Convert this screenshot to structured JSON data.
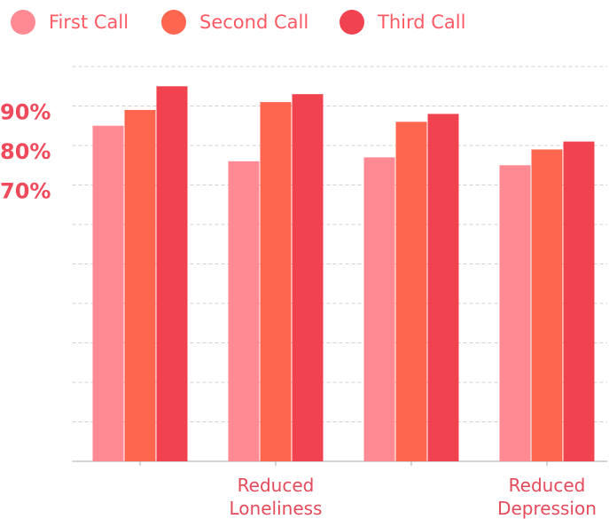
{
  "chart_data": {
    "type": "bar",
    "categories": [
      null,
      "Reduced Loneliness",
      null,
      "Reduced Depression"
    ],
    "series": [
      {
        "name": "First Call",
        "color": "#ff8a93",
        "values": [
          85,
          76,
          77,
          75
        ]
      },
      {
        "name": "Second Call",
        "color": "#ff6650",
        "values": [
          89,
          91,
          86,
          79
        ]
      },
      {
        "name": "Third Call",
        "color": "#f0434f",
        "values": [
          95,
          93,
          88,
          81
        ]
      }
    ],
    "ylim": [
      0,
      100
    ],
    "yticks": [
      {
        "value": 90,
        "label": "90%"
      },
      {
        "value": 80,
        "label": "80%"
      },
      {
        "value": 70,
        "label": "70%"
      }
    ],
    "grid_lines": [
      10,
      20,
      30,
      40,
      50,
      60,
      70,
      80,
      90,
      100
    ],
    "grid": true,
    "legend": "top"
  }
}
